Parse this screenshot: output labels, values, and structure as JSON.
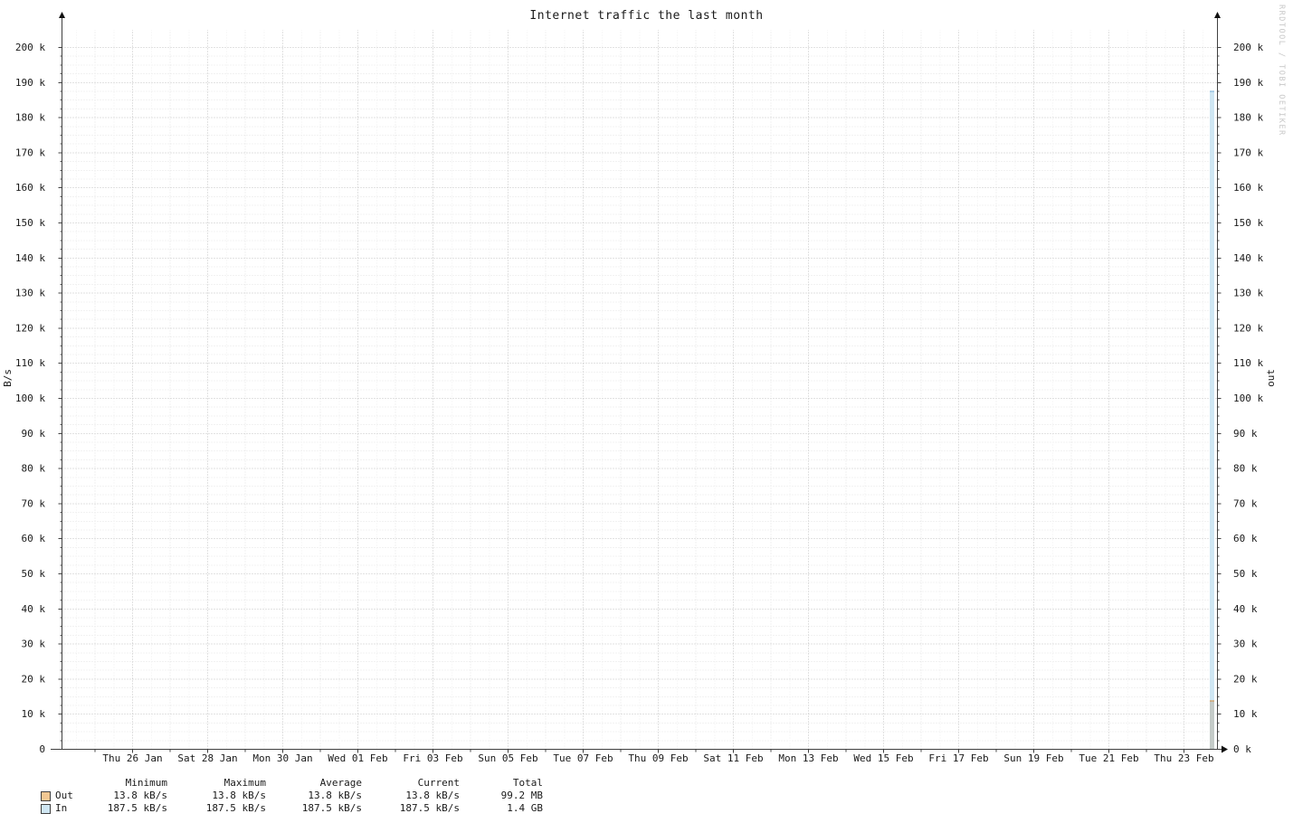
{
  "title": "Internet traffic the last month",
  "watermark": "RRDTOOL / TOBI OETIKER",
  "axis": {
    "left_label": "B/s",
    "right_label": "out"
  },
  "chart_data": {
    "type": "area",
    "title": "Internet traffic the last month",
    "ylabel": "B/s",
    "ylabel_right": "out",
    "ylim": [
      0,
      200000
    ],
    "y_major_step": 10000,
    "y_minor_step": 2500,
    "grid": true,
    "y_tick_labels_left": [
      "0",
      "10 k",
      "20 k",
      "30 k",
      "40 k",
      "50 k",
      "60 k",
      "70 k",
      "80 k",
      "90 k",
      "100 k",
      "110 k",
      "120 k",
      "130 k",
      "140 k",
      "150 k",
      "160 k",
      "170 k",
      "180 k",
      "190 k",
      "200 k"
    ],
    "y_tick_labels_right": [
      "0 k",
      "10 k",
      "20 k",
      "30 k",
      "40 k",
      "50 k",
      "60 k",
      "70 k",
      "80 k",
      "90 k",
      "100 k",
      "110 k",
      "120 k",
      "130 k",
      "140 k",
      "150 k",
      "160 k",
      "170 k",
      "180 k",
      "190 k",
      "200 k"
    ],
    "x_tick_labels": [
      "Thu 26 Jan",
      "Sat 28 Jan",
      "Mon 30 Jan",
      "Wed 01 Feb",
      "Fri 03 Feb",
      "Sun 05 Feb",
      "Tue 07 Feb",
      "Thu 09 Feb",
      "Sat 11 Feb",
      "Mon 13 Feb",
      "Wed 15 Feb",
      "Fri 17 Feb",
      "Sun 19 Feb",
      "Tue 21 Feb",
      "Thu 23 Feb"
    ],
    "series": [
      {
        "name": "In",
        "value_bps": 187500,
        "fill": "#cfe6f3",
        "line": "#74add6",
        "note": "single spike at right edge of window, flat/no data elsewhere"
      },
      {
        "name": "Out",
        "value_bps": 13800,
        "fill": "#c4cbc8",
        "line": "#d78d3d",
        "note": "single spike at right edge of window, flat/no data elsewhere"
      }
    ]
  },
  "legend": {
    "headers": [
      "Minimum",
      "Maximum",
      "Average",
      "Current",
      "Total"
    ],
    "rows": [
      {
        "name": "Out",
        "swatch": "#f2c893",
        "values": [
          "13.8 kB/s",
          "13.8 kB/s",
          "13.8 kB/s",
          "13.8 kB/s",
          "99.2 MB"
        ]
      },
      {
        "name": "In",
        "swatch": "#cfe6f3",
        "values": [
          "187.5 kB/s",
          "187.5 kB/s",
          "187.5 kB/s",
          "187.5 kB/s",
          "1.4 GB"
        ]
      }
    ]
  }
}
